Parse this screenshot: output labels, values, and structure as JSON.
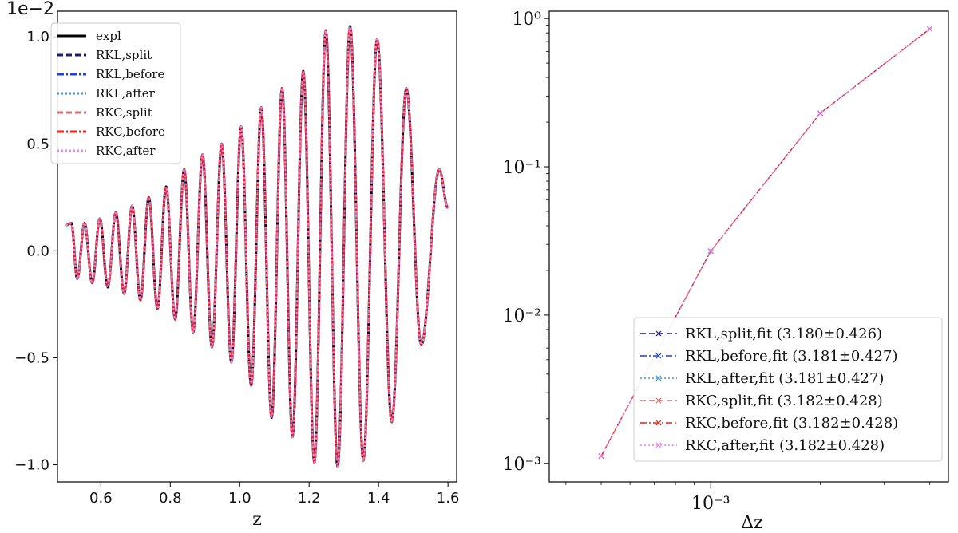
{
  "chart_data": [
    {
      "type": "line",
      "title": "",
      "offset_label": "1e−2",
      "xlabel": "z",
      "ylabel": "",
      "xlim": [
        0.475,
        1.625
      ],
      "ylim": [
        -1.08,
        1.12
      ],
      "xticks": [
        0.6,
        0.8,
        1.0,
        1.2,
        1.4,
        1.6
      ],
      "xtick_labels": [
        "0.6",
        "0.8",
        "1.0",
        "1.2",
        "1.4",
        "1.6"
      ],
      "yticks": [
        1.0,
        0.5,
        0.0,
        -0.5,
        -1.0
      ],
      "ytick_labels": [
        "1.0",
        "0.5",
        "0.0",
        "−0.5",
        "−1.0"
      ],
      "legend_position": "top-left",
      "signal": {
        "description_values": "oscillation with increasing amplitude, peaks read from chart",
        "z_start": 0.5,
        "z_end": 1.6,
        "start_value": 0.12,
        "end_value": 0.2,
        "peaks": [
          {
            "z": 0.5,
            "y": 0.12
          },
          {
            "z": 0.515,
            "y": 0.13
          },
          {
            "z": 0.532,
            "y": -0.13
          },
          {
            "z": 0.553,
            "y": 0.13
          },
          {
            "z": 0.575,
            "y": -0.15
          },
          {
            "z": 0.597,
            "y": 0.15
          },
          {
            "z": 0.62,
            "y": -0.17
          },
          {
            "z": 0.643,
            "y": 0.18
          },
          {
            "z": 0.667,
            "y": -0.2
          },
          {
            "z": 0.69,
            "y": 0.21
          },
          {
            "z": 0.714,
            "y": -0.23
          },
          {
            "z": 0.738,
            "y": 0.25
          },
          {
            "z": 0.763,
            "y": -0.27
          },
          {
            "z": 0.788,
            "y": 0.3
          },
          {
            "z": 0.814,
            "y": -0.32
          },
          {
            "z": 0.84,
            "y": 0.38
          },
          {
            "z": 0.866,
            "y": -0.38
          },
          {
            "z": 0.893,
            "y": 0.45
          },
          {
            "z": 0.92,
            "y": -0.45
          },
          {
            "z": 0.948,
            "y": 0.5
          },
          {
            "z": 0.976,
            "y": -0.52
          },
          {
            "z": 1.004,
            "y": 0.58
          },
          {
            "z": 1.033,
            "y": -0.63
          },
          {
            "z": 1.062,
            "y": 0.67
          },
          {
            "z": 1.092,
            "y": -0.78
          },
          {
            "z": 1.122,
            "y": 0.76
          },
          {
            "z": 1.152,
            "y": -0.87
          },
          {
            "z": 1.183,
            "y": 0.84
          },
          {
            "z": 1.215,
            "y": -0.99
          },
          {
            "z": 1.248,
            "y": 1.03
          },
          {
            "z": 1.282,
            "y": -1.01
          },
          {
            "z": 1.318,
            "y": 1.05
          },
          {
            "z": 1.356,
            "y": -0.98
          },
          {
            "z": 1.396,
            "y": 0.99
          },
          {
            "z": 1.438,
            "y": -0.8
          },
          {
            "z": 1.48,
            "y": 0.76
          },
          {
            "z": 1.523,
            "y": -0.44
          },
          {
            "z": 1.575,
            "y": 0.38
          },
          {
            "z": 1.6,
            "y": 0.2
          }
        ]
      },
      "series": [
        {
          "name": "expl",
          "color": "#000000",
          "dash": "solid"
        },
        {
          "name": "RKL,split",
          "color": "#1a1a8c",
          "dash": "dashed"
        },
        {
          "name": "RKL,before",
          "color": "#1f3fe0",
          "dash": "dashdot"
        },
        {
          "name": "RKL,after",
          "color": "#3a9ad9",
          "dash": "dotted"
        },
        {
          "name": "RKC,split",
          "color": "#d96c6c",
          "dash": "dashed"
        },
        {
          "name": "RKC,before",
          "color": "#ff1a1a",
          "dash": "dashdot"
        },
        {
          "name": "RKC,after",
          "color": "#ee82ee",
          "dash": "dotted"
        }
      ]
    },
    {
      "type": "line",
      "scale": "log-log",
      "title": "",
      "xlabel": "Δz",
      "ylabel": "",
      "xlim": [
        0.00036,
        0.0045
      ],
      "ylim": [
        0.00075,
        1.12
      ],
      "xticks": [
        0.001
      ],
      "xtick_labels": [
        "10⁻³"
      ],
      "yticks": [
        0.001,
        0.01,
        0.1,
        1
      ],
      "ytick_labels": [
        "10⁻³",
        "10⁻²",
        "10⁻¹",
        "10⁰"
      ],
      "legend_position": "bottom-right",
      "x": [
        0.0005,
        0.001,
        0.002,
        0.004
      ],
      "series": [
        {
          "name": "RKL,split,fit (3.180±0.426)",
          "color": "#1a1a8c",
          "dash": "dashed",
          "values": [
            0.00112,
            0.027,
            0.23,
            0.85
          ]
        },
        {
          "name": "RKL,before,fit (3.181±0.427)",
          "color": "#1f3fe0",
          "dash": "dashdot",
          "values": [
            0.00112,
            0.027,
            0.23,
            0.85
          ]
        },
        {
          "name": "RKL,after,fit (3.181±0.427)",
          "color": "#3a9ad9",
          "dash": "dotted",
          "values": [
            0.00112,
            0.027,
            0.23,
            0.85
          ]
        },
        {
          "name": "RKC,split,fit (3.182±0.428)",
          "color": "#d96c6c",
          "dash": "dashed",
          "values": [
            0.00112,
            0.027,
            0.23,
            0.85
          ]
        },
        {
          "name": "RKC,before,fit (3.182±0.428)",
          "color": "#ff1a1a",
          "dash": "dashdot",
          "values": [
            0.00112,
            0.027,
            0.23,
            0.85
          ]
        },
        {
          "name": "RKC,after,fit (3.182±0.428)",
          "color": "#ee82ee",
          "dash": "dotted",
          "values": [
            0.00112,
            0.027,
            0.23,
            0.85
          ]
        }
      ]
    }
  ]
}
